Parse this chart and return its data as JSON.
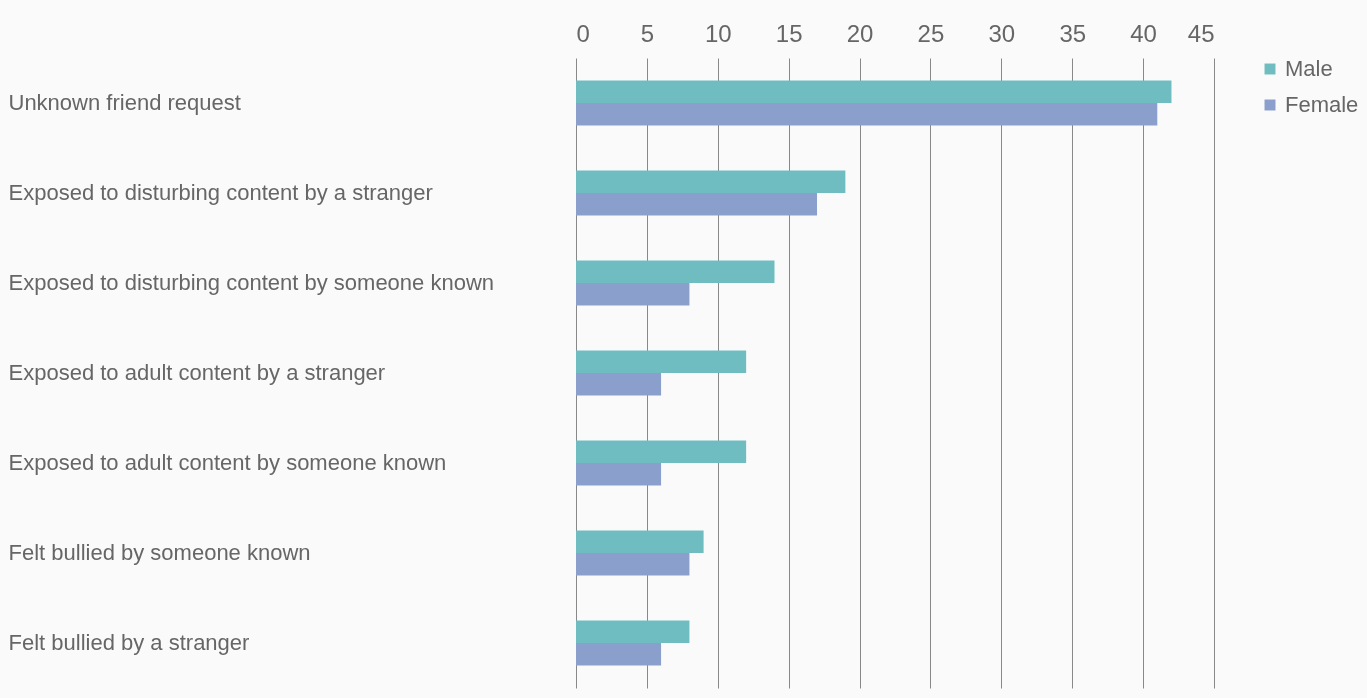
{
  "chart_data": {
    "type": "bar",
    "orientation": "horizontal",
    "categories": [
      "Unknown friend request",
      "Exposed to disturbing content by a stranger",
      "Exposed to disturbing content by someone known",
      "Exposed to adult content by a stranger",
      "Exposed to adult content by someone known",
      "Felt bullied by someone known",
      "Felt bullied by a stranger"
    ],
    "series": [
      {
        "name": "Male",
        "color": "#6fbdc1",
        "values": [
          42,
          19,
          14,
          12,
          12,
          9,
          8
        ]
      },
      {
        "name": "Female",
        "color": "#8a9fcb",
        "values": [
          41,
          17,
          8,
          6,
          6,
          8,
          6
        ]
      }
    ],
    "xlim": [
      0,
      45
    ],
    "xticks": [
      0,
      5,
      10,
      15,
      20,
      25,
      30,
      35,
      40,
      45
    ],
    "grid": "x",
    "legend": "right"
  }
}
